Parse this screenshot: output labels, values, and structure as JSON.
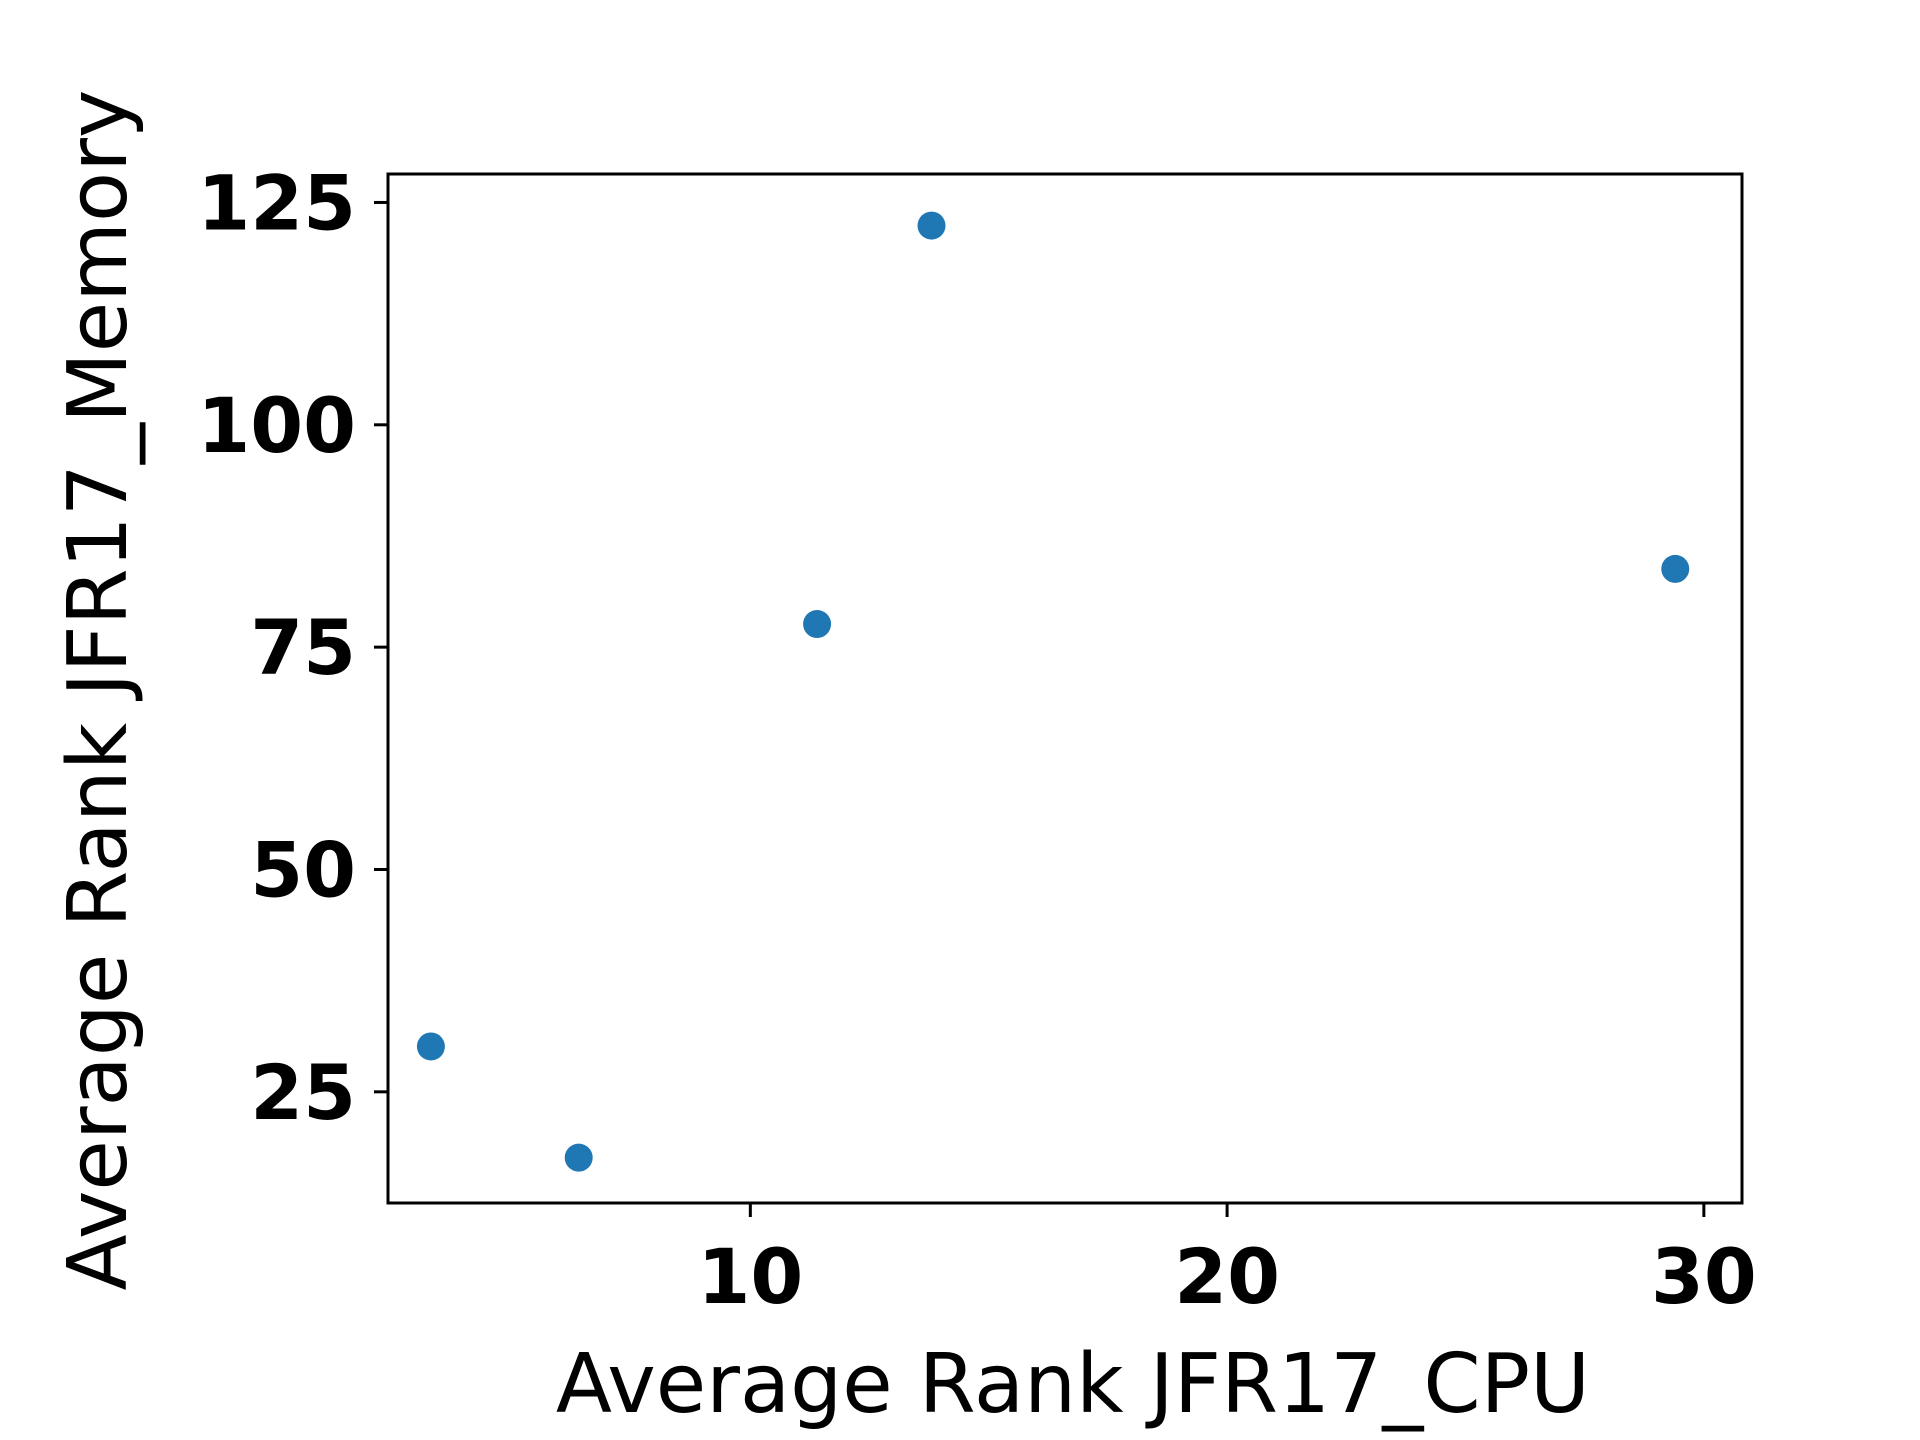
{
  "chart_data": {
    "type": "scatter",
    "title": "",
    "xlabel": "Average Rank JFR17_CPU",
    "ylabel": "Average Rank JFR17_Memory",
    "xlim": [
      2.4,
      30.8
    ],
    "ylim": [
      12.5,
      128.2
    ],
    "xticks": [
      10,
      20,
      30
    ],
    "yticks": [
      25,
      50,
      75,
      100,
      125
    ],
    "grid": false,
    "legend": "none",
    "series": [
      {
        "color": "#1f77b4",
        "points": [
          {
            "x": 3.3,
            "y": 30.1
          },
          {
            "x": 6.4,
            "y": 17.6
          },
          {
            "x": 11.4,
            "y": 77.6
          },
          {
            "x": 13.8,
            "y": 122.4
          },
          {
            "x": 29.4,
            "y": 83.8
          }
        ]
      }
    ]
  }
}
